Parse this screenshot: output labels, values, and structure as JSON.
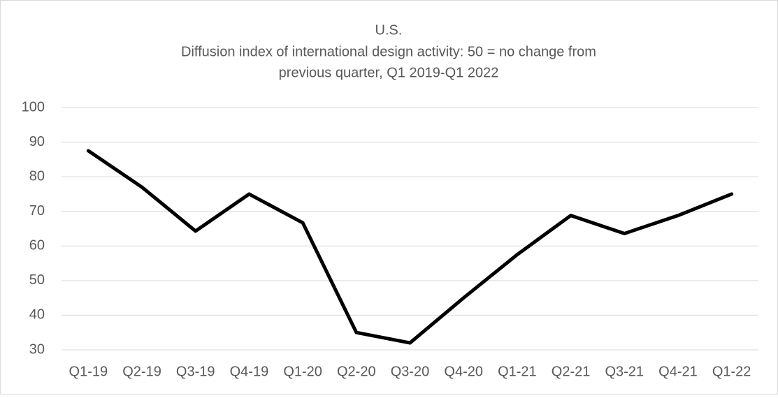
{
  "chart_data": {
    "type": "line",
    "title": "U.S.",
    "subtitle": [
      "Diffusion index of international design activity: 50 = no change from",
      "previous quarter, Q1 2019-Q1 2022"
    ],
    "categories": [
      "Q1-19",
      "Q2-19",
      "Q3-19",
      "Q4-19",
      "Q1-20",
      "Q2-20",
      "Q3-20",
      "Q4-20",
      "Q1-21",
      "Q2-21",
      "Q3-21",
      "Q4-21",
      "Q1-22"
    ],
    "values": [
      87.5,
      77,
      64.3,
      75,
      66.7,
      35,
      32,
      45,
      57.5,
      68.8,
      63.6,
      68.8,
      75
    ],
    "color": "#000000",
    "ylim": [
      30,
      100
    ],
    "yticks": [
      30,
      40,
      50,
      60,
      70,
      80,
      90,
      100
    ],
    "grid": true
  }
}
